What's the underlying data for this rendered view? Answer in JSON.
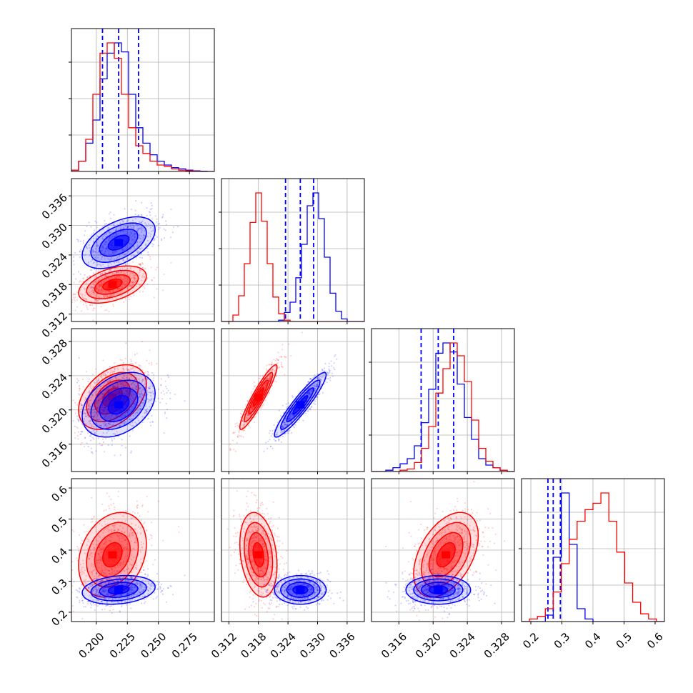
{
  "colors": {
    "series_a": "#0000ff",
    "series_b": "#ff0000",
    "grid": "#b0b0b0",
    "axes": "#000000"
  },
  "chart_data": {
    "type": "corner",
    "grid": true,
    "parameters": [
      {
        "ticks": [
          "0.200",
          "0.225",
          "0.250",
          "0.275"
        ],
        "tick_values": [
          0.2,
          0.225,
          0.25,
          0.275
        ],
        "range": [
          0.18,
          0.295
        ]
      },
      {
        "ticks": [
          "0.312",
          "0.318",
          "0.324",
          "0.330",
          "0.336"
        ],
        "tick_values": [
          0.312,
          0.318,
          0.324,
          0.33,
          0.336
        ],
        "range": [
          0.3105,
          0.3395
        ]
      },
      {
        "ticks": [
          "0.316",
          "0.320",
          "0.324",
          "0.328"
        ],
        "tick_values": [
          0.316,
          0.32,
          0.324,
          0.328
        ],
        "range": [
          0.3128,
          0.3295
        ]
      },
      {
        "ticks": [
          "0.2",
          "0.3",
          "0.4",
          "0.5",
          "0.6"
        ],
        "tick_values": [
          0.2,
          0.3,
          0.4,
          0.5,
          0.6
        ],
        "range": [
          0.17,
          0.63
        ]
      }
    ],
    "series": [
      {
        "color": "#0000ff",
        "quantiles": [
          [
            0.205,
            0.218,
            0.234
          ],
          [
            0.3235,
            0.3265,
            0.3292
          ],
          [
            0.3186,
            0.3206,
            0.3224
          ],
          [
            0.255,
            0.272,
            0.295
          ]
        ],
        "means": [
          0.218,
          0.3265,
          0.3206,
          0.272
        ],
        "sigmas": [
          0.014,
          0.0025,
          0.0018,
          0.022
        ],
        "correlations": {
          "1-0": 0.5,
          "2-0": 0.35,
          "2-1": 0.93,
          "3-0": 0.2,
          "3-1": 0.0,
          "3-2": 0.0
        },
        "histograms": [
          [
            0.01,
            0.08,
            0.22,
            0.4,
            0.72,
            0.92,
            1.0,
            0.93,
            0.6,
            0.34,
            0.22,
            0.13,
            0.08,
            0.05,
            0.03,
            0.02,
            0.01,
            0.005,
            0.002,
            0.0
          ],
          [
            0.0,
            0.0,
            0.0,
            0.0,
            0.0,
            0.0,
            0.0,
            0.0,
            0.0,
            0.0,
            0.01,
            0.07,
            0.15,
            0.34,
            0.6,
            0.9,
            1.0,
            0.8,
            0.5,
            0.22,
            0.08,
            0.02,
            0.0,
            0.0,
            0.0
          ],
          [
            0.0,
            0.0,
            0.01,
            0.03,
            0.06,
            0.1,
            0.2,
            0.38,
            0.64,
            0.92,
            1.0,
            0.93,
            0.68,
            0.42,
            0.25,
            0.1,
            0.05,
            0.03,
            0.01,
            0.0
          ],
          [
            0.0,
            0.0,
            0.0,
            0.05,
            0.5,
            1.0,
            0.6,
            0.1,
            0.02,
            0.0,
            0.0,
            0.0,
            0.0,
            0.0,
            0.0,
            0.0,
            0.0,
            0.0
          ]
        ]
      },
      {
        "color": "#ff0000",
        "quantiles": null,
        "means": [
          0.213,
          0.318,
          0.3215,
          0.385
        ],
        "sigmas": [
          0.013,
          0.0018,
          0.0018,
          0.065
        ],
        "correlations": {
          "1-0": 0.45,
          "2-0": 0.4,
          "2-1": 0.93,
          "3-0": 0.25,
          "3-1": -0.25,
          "3-2": 0.45
        },
        "histograms": [
          [
            0.01,
            0.08,
            0.25,
            0.6,
            0.92,
            1.0,
            0.88,
            0.6,
            0.34,
            0.2,
            0.14,
            0.08,
            0.05,
            0.04,
            0.02,
            0.01,
            0.005,
            0.002,
            0.0,
            0.0
          ],
          [
            0.0,
            0.0,
            0.05,
            0.2,
            0.45,
            0.77,
            1.0,
            0.78,
            0.45,
            0.19,
            0.06,
            0.01,
            0.0,
            0.0,
            0.0,
            0.0,
            0.0,
            0.0,
            0.0,
            0.0,
            0.0,
            0.0,
            0.0,
            0.0,
            0.0
          ],
          [
            0.0,
            0.0,
            0.0,
            0.0,
            0.01,
            0.02,
            0.07,
            0.18,
            0.35,
            0.61,
            0.8,
            1.0,
            0.9,
            0.7,
            0.4,
            0.18,
            0.08,
            0.03,
            0.01,
            0.0
          ],
          [
            0.0,
            0.02,
            0.04,
            0.1,
            0.23,
            0.45,
            0.64,
            0.78,
            0.87,
            0.92,
            1.0,
            0.78,
            0.54,
            0.3,
            0.15,
            0.06,
            0.02,
            0.0
          ]
        ]
      }
    ]
  }
}
